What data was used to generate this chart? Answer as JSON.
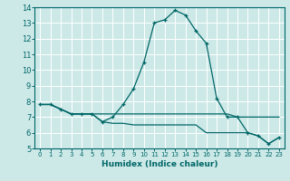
{
  "xlabel": "Humidex (Indice chaleur)",
  "xlim": [
    -0.5,
    23.5
  ],
  "ylim": [
    5,
    14
  ],
  "xticks": [
    0,
    1,
    2,
    3,
    4,
    5,
    6,
    7,
    8,
    9,
    10,
    11,
    12,
    13,
    14,
    15,
    16,
    17,
    18,
    19,
    20,
    21,
    22,
    23
  ],
  "yticks": [
    5,
    6,
    7,
    8,
    9,
    10,
    11,
    12,
    13,
    14
  ],
  "bg_color": "#cce9e8",
  "grid_color": "#ffffff",
  "line_color": "#006666",
  "line1_x": [
    0,
    1,
    2,
    3,
    4,
    5,
    6,
    7,
    8,
    9,
    10,
    11,
    12,
    13,
    14,
    15,
    16,
    17,
    18,
    19,
    20,
    21,
    22,
    23
  ],
  "line1_y": [
    7.8,
    7.8,
    7.5,
    7.2,
    7.2,
    7.2,
    6.7,
    7.0,
    7.8,
    8.8,
    10.5,
    13.0,
    13.2,
    13.8,
    13.5,
    12.5,
    11.7,
    8.2,
    7.0,
    7.0,
    6.0,
    5.8,
    5.3,
    5.7
  ],
  "line2_x": [
    0,
    1,
    2,
    3,
    4,
    5,
    6,
    7,
    8,
    9,
    10,
    11,
    12,
    13,
    14,
    15,
    16,
    17,
    18,
    19,
    20,
    21,
    22,
    23
  ],
  "line2_y": [
    7.8,
    7.8,
    7.5,
    7.2,
    7.2,
    7.2,
    6.7,
    6.6,
    6.6,
    6.5,
    6.5,
    6.5,
    6.5,
    6.5,
    6.5,
    6.5,
    6.0,
    6.0,
    6.0,
    6.0,
    6.0,
    5.8,
    5.3,
    5.7
  ],
  "line3_x": [
    0,
    1,
    2,
    3,
    4,
    5,
    6,
    7,
    8,
    9,
    10,
    11,
    12,
    13,
    14,
    15,
    16,
    17,
    18,
    19,
    20,
    21,
    22,
    23
  ],
  "line3_y": [
    7.8,
    7.8,
    7.5,
    7.2,
    7.2,
    7.2,
    7.2,
    7.2,
    7.2,
    7.2,
    7.2,
    7.2,
    7.2,
    7.2,
    7.2,
    7.2,
    7.2,
    7.2,
    7.2,
    7.0,
    7.0,
    7.0,
    7.0,
    7.0
  ],
  "marker1_x": [
    0,
    1,
    2,
    3,
    4,
    5,
    6,
    7,
    8,
    9,
    10,
    11,
    12,
    13,
    14,
    15,
    16,
    17,
    18,
    19,
    20,
    21,
    22,
    23
  ],
  "marker1_y": [
    7.8,
    7.8,
    7.5,
    7.2,
    7.2,
    7.2,
    6.7,
    7.0,
    7.8,
    8.8,
    10.5,
    13.0,
    13.2,
    13.8,
    13.5,
    12.5,
    11.7,
    8.2,
    7.0,
    7.0,
    6.0,
    5.8,
    5.3,
    5.7
  ]
}
